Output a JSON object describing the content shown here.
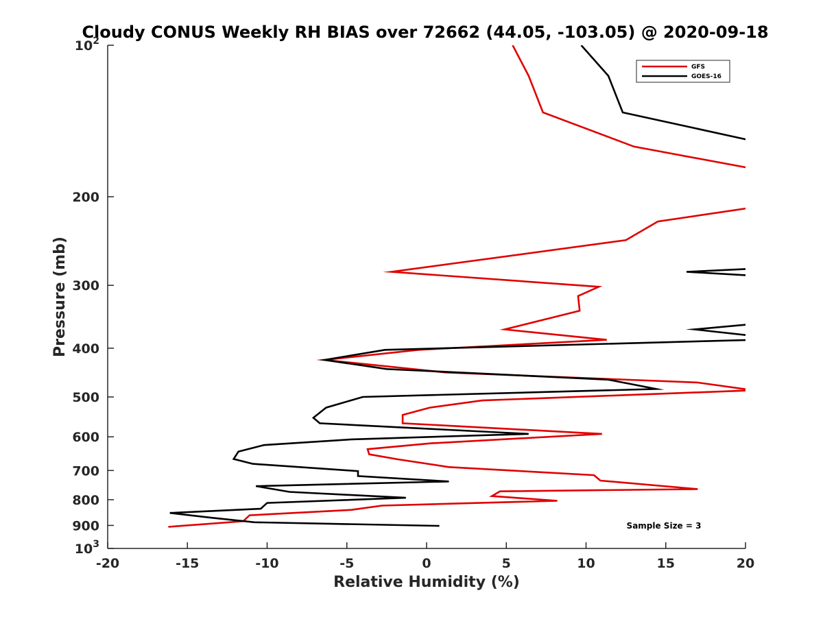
{
  "chart_data": {
    "type": "line",
    "title": "Cloudy CONUS Weekly RH BIAS over 72662 (44.05, -103.05) @ 2020-09-18",
    "xlabel": "Relative Humidity (%)",
    "ylabel": "Pressure (mb)",
    "xlim": [
      -20,
      20
    ],
    "ylim": [
      100,
      1000
    ],
    "y_scale": "log",
    "y_reversed": true,
    "x_ticks": [
      "-20",
      "-15",
      "-10",
      "-5",
      "0",
      "5",
      "10",
      "15",
      "20"
    ],
    "y_tick_values": [
      100,
      200,
      300,
      400,
      500,
      600,
      700,
      800,
      900,
      1000
    ],
    "y_tick_labels": [
      {
        "base": "10",
        "exp": "2"
      },
      {
        "base": "200"
      },
      {
        "base": "300"
      },
      {
        "base": "400"
      },
      {
        "base": "500"
      },
      {
        "base": "600"
      },
      {
        "base": "700"
      },
      {
        "base": "800"
      },
      {
        "base": "900"
      },
      {
        "base": "10",
        "exp": "3"
      }
    ],
    "grid": false,
    "legend_position": "top-right",
    "annotation": "Sample Size = 3",
    "series": [
      {
        "name": "GFS",
        "color": "#e00000",
        "points": [
          [
            5.4,
            100
          ],
          [
            6.4,
            115
          ],
          [
            7.3,
            136
          ],
          [
            13,
            159
          ],
          [
            20.5,
            176
          ],
          [
            null,
            null
          ],
          [
            20.5,
            210
          ],
          [
            14.5,
            224
          ],
          [
            12.5,
            244
          ],
          [
            -2.2,
            282
          ],
          [
            10.8,
            302
          ],
          [
            9.5,
            315
          ],
          [
            9.6,
            337
          ],
          [
            4.9,
            367
          ],
          [
            11.3,
            385
          ],
          [
            -0.5,
            403
          ],
          [
            -6.4,
            422
          ],
          [
            1.2,
            447
          ],
          [
            17,
            468
          ],
          [
            20.5,
            485
          ],
          [
            3.5,
            508
          ],
          [
            0.2,
            525
          ],
          [
            -1.5,
            543
          ],
          [
            -1.5,
            564
          ],
          [
            11,
            592
          ],
          [
            0.3,
            618
          ],
          [
            -3.7,
            635
          ],
          [
            -3.6,
            650
          ],
          [
            -1.8,
            665
          ],
          [
            1.4,
            689
          ],
          [
            10.5,
            715
          ],
          [
            10.9,
            733
          ],
          [
            17,
            762
          ],
          [
            4.6,
            770
          ],
          [
            4.1,
            787
          ],
          [
            8.2,
            804
          ],
          [
            -2.8,
            822
          ],
          [
            -4.7,
            838
          ],
          [
            -11.1,
            859
          ],
          [
            -11.5,
            883
          ],
          [
            -16.2,
            906
          ]
        ]
      },
      {
        "name": "GOES-16",
        "color": "#000000",
        "points": [
          [
            9.7,
            100
          ],
          [
            11.4,
            115
          ],
          [
            12.3,
            136
          ],
          [
            20.5,
            155
          ],
          [
            null,
            null
          ],
          [
            20.5,
            278
          ],
          [
            16.3,
            282
          ],
          [
            20.5,
            287
          ],
          [
            null,
            null
          ],
          [
            20.5,
            358
          ],
          [
            16.8,
            367
          ],
          [
            20.5,
            378
          ],
          [
            null,
            null
          ],
          [
            20.5,
            385
          ],
          [
            -2.6,
            403
          ],
          [
            -6.4,
            422
          ],
          [
            -2.5,
            440
          ],
          [
            11.4,
            462
          ],
          [
            14.4,
            482
          ],
          [
            -4,
            500
          ],
          [
            -6.3,
            525
          ],
          [
            -7.1,
            550
          ],
          [
            -6.7,
            564
          ],
          [
            6.4,
            592
          ],
          [
            -4.7,
            607
          ],
          [
            -10.2,
            623
          ],
          [
            -11.8,
            642
          ],
          [
            -12.1,
            664
          ],
          [
            -10.9,
            679
          ],
          [
            -4.3,
            702
          ],
          [
            -4.3,
            718
          ],
          [
            1.4,
            736
          ],
          [
            -10.7,
            752
          ],
          [
            -8.6,
            772
          ],
          [
            -1.3,
            793
          ],
          [
            -10,
            812
          ],
          [
            -10.4,
            834
          ],
          [
            -16.1,
            850
          ],
          [
            -13.5,
            869
          ],
          [
            -10.8,
            887
          ],
          [
            0.8,
            902
          ]
        ]
      }
    ]
  }
}
